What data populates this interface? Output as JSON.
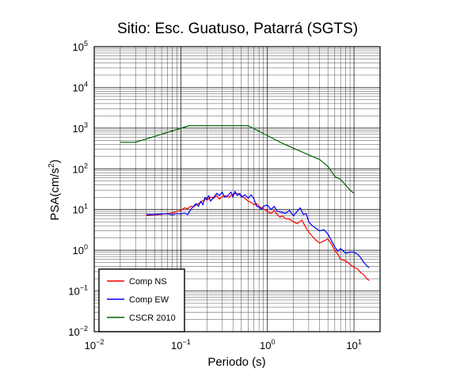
{
  "chart_data": {
    "type": "line",
    "title": "Sitio: Esc. Guatuso, Patarrá (SGTS)",
    "xlabel": "Periodo (s)",
    "ylabel": "PSA(cm/s",
    "ylabel_sup": "2",
    "ylabel_close": ")",
    "x_scale": "log",
    "y_scale": "log",
    "xlim": [
      0.01,
      20
    ],
    "ylim": [
      0.01,
      100000
    ],
    "grid": true,
    "legend_position": "bottom-left",
    "x_ticks": [
      {
        "value": 0.01,
        "base": "10",
        "exp": "−2"
      },
      {
        "value": 0.1,
        "base": "10",
        "exp": "−1"
      },
      {
        "value": 1,
        "base": "10",
        "exp": "0"
      },
      {
        "value": 10,
        "base": "10",
        "exp": "1"
      }
    ],
    "y_ticks": [
      {
        "value": 0.01,
        "base": "10",
        "exp": "−2"
      },
      {
        "value": 0.1,
        "base": "10",
        "exp": "−1"
      },
      {
        "value": 1,
        "base": "10",
        "exp": "0"
      },
      {
        "value": 10,
        "base": "10",
        "exp": "1"
      },
      {
        "value": 100,
        "base": "10",
        "exp": "2"
      },
      {
        "value": 1000,
        "base": "10",
        "exp": "3"
      },
      {
        "value": 10000,
        "base": "10",
        "exp": "4"
      },
      {
        "value": 100000,
        "base": "10",
        "exp": "5"
      }
    ],
    "series": [
      {
        "name": "Comp NS",
        "color": "#ff0000",
        "points": [
          [
            0.04,
            7.2
          ],
          [
            0.05,
            7.4
          ],
          [
            0.06,
            7.6
          ],
          [
            0.07,
            8.0
          ],
          [
            0.08,
            8.3
          ],
          [
            0.09,
            9.0
          ],
          [
            0.1,
            9.5
          ],
          [
            0.11,
            11
          ],
          [
            0.12,
            10.5
          ],
          [
            0.13,
            12
          ],
          [
            0.14,
            11.5
          ],
          [
            0.15,
            13
          ],
          [
            0.17,
            15
          ],
          [
            0.19,
            18
          ],
          [
            0.2,
            17
          ],
          [
            0.22,
            20
          ],
          [
            0.24,
            19
          ],
          [
            0.26,
            22
          ],
          [
            0.28,
            18
          ],
          [
            0.3,
            21
          ],
          [
            0.33,
            22
          ],
          [
            0.36,
            20
          ],
          [
            0.4,
            24
          ],
          [
            0.45,
            25
          ],
          [
            0.5,
            22
          ],
          [
            0.55,
            19
          ],
          [
            0.6,
            16
          ],
          [
            0.65,
            15
          ],
          [
            0.7,
            13
          ],
          [
            0.75,
            14
          ],
          [
            0.8,
            12
          ],
          [
            0.9,
            10.5
          ],
          [
            1.0,
            9.0
          ],
          [
            1.1,
            8.0
          ],
          [
            1.2,
            9.5
          ],
          [
            1.3,
            7.5
          ],
          [
            1.4,
            6.5
          ],
          [
            1.5,
            7.0
          ],
          [
            1.6,
            6.0
          ],
          [
            1.8,
            5.8
          ],
          [
            2.0,
            5.0
          ],
          [
            2.2,
            4.5
          ],
          [
            2.5,
            5.5
          ],
          [
            2.8,
            3.5
          ],
          [
            3.0,
            2.8
          ],
          [
            3.3,
            2.2
          ],
          [
            3.6,
            1.8
          ],
          [
            4.0,
            1.5
          ],
          [
            4.5,
            1.7
          ],
          [
            5.0,
            1.9
          ],
          [
            5.5,
            1.4
          ],
          [
            6.0,
            1.0
          ],
          [
            6.5,
            0.8
          ],
          [
            7.0,
            0.6
          ],
          [
            8.0,
            0.55
          ],
          [
            9.0,
            0.45
          ],
          [
            10.0,
            0.38
          ],
          [
            11.0,
            0.35
          ],
          [
            12.0,
            0.28
          ],
          [
            13.0,
            0.25
          ],
          [
            14.0,
            0.2
          ],
          [
            15.0,
            0.18
          ]
        ]
      },
      {
        "name": "Comp EW",
        "color": "#0000ff",
        "points": [
          [
            0.04,
            7.5
          ],
          [
            0.05,
            7.6
          ],
          [
            0.06,
            7.8
          ],
          [
            0.07,
            7.9
          ],
          [
            0.08,
            7.4
          ],
          [
            0.09,
            8.0
          ],
          [
            0.1,
            7.8
          ],
          [
            0.11,
            8.2
          ],
          [
            0.12,
            7.5
          ],
          [
            0.13,
            10
          ],
          [
            0.14,
            12
          ],
          [
            0.15,
            14
          ],
          [
            0.16,
            12
          ],
          [
            0.17,
            16
          ],
          [
            0.18,
            13
          ],
          [
            0.19,
            20
          ],
          [
            0.2,
            18
          ],
          [
            0.21,
            22
          ],
          [
            0.22,
            16
          ],
          [
            0.24,
            20
          ],
          [
            0.26,
            25
          ],
          [
            0.28,
            22
          ],
          [
            0.3,
            27
          ],
          [
            0.32,
            20
          ],
          [
            0.35,
            22
          ],
          [
            0.38,
            27
          ],
          [
            0.4,
            20
          ],
          [
            0.42,
            28
          ],
          [
            0.45,
            22
          ],
          [
            0.48,
            25
          ],
          [
            0.5,
            20
          ],
          [
            0.55,
            23
          ],
          [
            0.6,
            19
          ],
          [
            0.65,
            23
          ],
          [
            0.7,
            18
          ],
          [
            0.75,
            12
          ],
          [
            0.8,
            11.5
          ],
          [
            0.85,
            10
          ],
          [
            0.9,
            12
          ],
          [
            1.0,
            13
          ],
          [
            1.1,
            10
          ],
          [
            1.2,
            12
          ],
          [
            1.3,
            9.0
          ],
          [
            1.5,
            8.5
          ],
          [
            1.6,
            8.0
          ],
          [
            1.8,
            9.5
          ],
          [
            2.0,
            7.0
          ],
          [
            2.2,
            9.0
          ],
          [
            2.4,
            11
          ],
          [
            2.6,
            7.5
          ],
          [
            2.8,
            8.0
          ],
          [
            3.0,
            5.0
          ],
          [
            3.3,
            4.0
          ],
          [
            3.6,
            3.5
          ],
          [
            4.0,
            3.0
          ],
          [
            4.5,
            3.2
          ],
          [
            5.0,
            2.5
          ],
          [
            5.5,
            1.7
          ],
          [
            6.0,
            1.2
          ],
          [
            6.5,
            0.95
          ],
          [
            7.0,
            1.1
          ],
          [
            8.0,
            0.85
          ],
          [
            9.0,
            0.9
          ],
          [
            10.0,
            0.9
          ],
          [
            11.0,
            0.8
          ],
          [
            12.0,
            0.65
          ],
          [
            13.0,
            0.5
          ],
          [
            14.0,
            0.42
          ],
          [
            15.0,
            0.37
          ]
        ]
      },
      {
        "name": "CSCR 2010",
        "color": "#006400",
        "points": [
          [
            0.02,
            450
          ],
          [
            0.03,
            450
          ],
          [
            0.125,
            1150
          ],
          [
            0.6,
            1150
          ],
          [
            1.5,
            420
          ],
          [
            3.0,
            220
          ],
          [
            4.0,
            170
          ],
          [
            5.0,
            115
          ],
          [
            6.0,
            65
          ],
          [
            7.0,
            55
          ],
          [
            8.0,
            40
          ],
          [
            9.0,
            30
          ],
          [
            10.0,
            25
          ]
        ]
      }
    ]
  }
}
